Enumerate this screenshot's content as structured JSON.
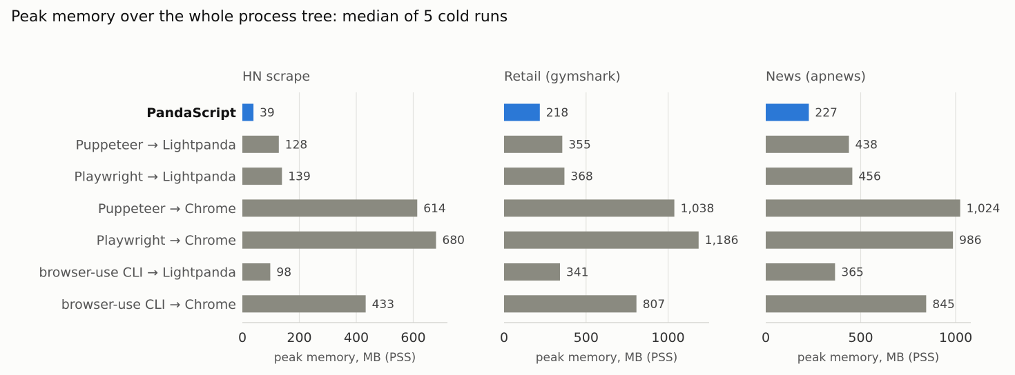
{
  "figure_title": "Peak memory over the whole process tree: median of 5 cold runs",
  "colors": {
    "highlight": "#2b78d6",
    "bar": "#8a8a80",
    "grid": "#e2e2de",
    "text_primary": "#111111",
    "text_secondary": "#555555",
    "background": "#fcfcfa"
  },
  "categories": [
    "PandaScript",
    "Puppeteer → Lightpanda",
    "Playwright → Lightpanda",
    "Puppeteer → Chrome",
    "Playwright → Chrome",
    "browser-use CLI → Lightpanda",
    "browser-use CLI → Chrome"
  ],
  "highlight_category": "PandaScript",
  "chart_data": [
    {
      "type": "bar",
      "orientation": "horizontal",
      "title": "HN scrape",
      "xlabel": "peak memory, MB (PSS)",
      "xlim": [
        0,
        720
      ],
      "xticks": [
        0,
        200,
        400,
        600
      ],
      "xtick_labels": [
        "0",
        "200",
        "400",
        "600"
      ],
      "values": [
        39,
        128,
        139,
        614,
        680,
        98,
        433
      ],
      "value_labels": [
        "39",
        "128",
        "139",
        "614",
        "680",
        "98",
        "433"
      ],
      "grid": true
    },
    {
      "type": "bar",
      "orientation": "horizontal",
      "title": "Retail (gymshark)",
      "xlabel": "peak memory, MB (PSS)",
      "xlim": [
        0,
        1250
      ],
      "xticks": [
        0,
        500,
        1000
      ],
      "xtick_labels": [
        "0",
        "500",
        "1000"
      ],
      "values": [
        218,
        355,
        368,
        1038,
        1186,
        341,
        807
      ],
      "value_labels": [
        "218",
        "355",
        "368",
        "1,038",
        "1,186",
        "341",
        "807"
      ],
      "grid": true
    },
    {
      "type": "bar",
      "orientation": "horizontal",
      "title": "News (apnews)",
      "xlabel": "peak memory, MB (PSS)",
      "xlim": [
        0,
        1080
      ],
      "xticks": [
        0,
        500,
        1000
      ],
      "xtick_labels": [
        "0",
        "500",
        "1000"
      ],
      "values": [
        227,
        438,
        456,
        1024,
        986,
        365,
        845
      ],
      "value_labels": [
        "227",
        "438",
        "456",
        "1,024",
        "986",
        "365",
        "845"
      ],
      "grid": true
    }
  ]
}
